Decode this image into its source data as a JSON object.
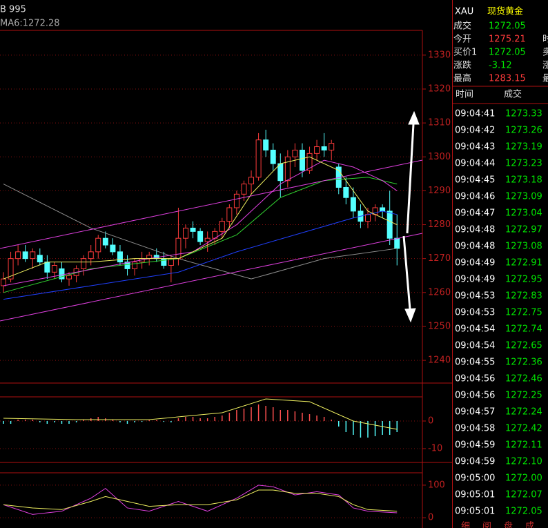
{
  "chart_data": [
    {
      "type": "candlestick",
      "title": "B 995",
      "annotation": "MA6:1272.28",
      "up_color": "#ff3b3b",
      "down_color": "#54ffff",
      "ylim": [
        1233.3,
        1337.3
      ],
      "yticks": [
        1240,
        1250,
        1260,
        1270,
        1280,
        1290,
        1300,
        1310,
        1320,
        1330
      ],
      "grid": true,
      "ohlc": [
        [
          1262,
          1266,
          1260,
          1264
        ],
        [
          1264,
          1272,
          1263,
          1270
        ],
        [
          1270,
          1274,
          1268,
          1272
        ],
        [
          1272,
          1274,
          1269,
          1270
        ],
        [
          1270,
          1273,
          1267,
          1272
        ],
        [
          1271,
          1273,
          1268,
          1269
        ],
        [
          1269,
          1271,
          1264,
          1266
        ],
        [
          1266,
          1269,
          1264,
          1268
        ],
        [
          1267,
          1269,
          1263,
          1264
        ],
        [
          1264,
          1266,
          1262,
          1265
        ],
        [
          1265,
          1268,
          1263,
          1267
        ],
        [
          1267,
          1271,
          1265,
          1270
        ],
        [
          1270,
          1274,
          1268,
          1272
        ],
        [
          1272,
          1277,
          1270,
          1276
        ],
        [
          1276,
          1278,
          1273,
          1274
        ],
        [
          1274,
          1276,
          1271,
          1272
        ],
        [
          1272,
          1274,
          1268,
          1269
        ],
        [
          1269,
          1271,
          1265,
          1267
        ],
        [
          1267,
          1270,
          1265,
          1269
        ],
        [
          1269,
          1272,
          1267,
          1270
        ],
        [
          1270,
          1272,
          1268,
          1271
        ],
        [
          1271,
          1273,
          1269,
          1270
        ],
        [
          1270,
          1272,
          1267,
          1268
        ],
        [
          1268,
          1271,
          1263,
          1270
        ],
        [
          1270,
          1285,
          1268,
          1276
        ],
        [
          1276,
          1280,
          1273,
          1279
        ],
        [
          1279,
          1281,
          1276,
          1278
        ],
        [
          1278,
          1279,
          1274,
          1275
        ],
        [
          1275,
          1278,
          1272,
          1276
        ],
        [
          1276,
          1279,
          1274,
          1278
        ],
        [
          1278,
          1282,
          1276,
          1281
        ],
        [
          1281,
          1286,
          1279,
          1285
        ],
        [
          1285,
          1290,
          1283,
          1289
        ],
        [
          1289,
          1293,
          1287,
          1292
        ],
        [
          1292,
          1296,
          1289,
          1294
        ],
        [
          1294,
          1307,
          1293,
          1305
        ],
        [
          1305,
          1308,
          1300,
          1302
        ],
        [
          1302,
          1304,
          1296,
          1298
        ],
        [
          1298,
          1301,
          1288,
          1293
        ],
        [
          1293,
          1302,
          1291,
          1300
        ],
        [
          1300,
          1304,
          1297,
          1302
        ],
        [
          1302,
          1304,
          1294,
          1296
        ],
        [
          1296,
          1303,
          1295,
          1301
        ],
        [
          1301,
          1305,
          1299,
          1303
        ],
        [
          1303,
          1307,
          1300,
          1302
        ],
        [
          1302,
          1305,
          1299,
          1304
        ],
        [
          1297,
          1298,
          1289,
          1291
        ],
        [
          1291,
          1294,
          1286,
          1288
        ],
        [
          1288,
          1291,
          1282,
          1284
        ],
        [
          1284,
          1286,
          1279,
          1281
        ],
        [
          1281,
          1285,
          1279,
          1283
        ],
        [
          1283,
          1286,
          1281,
          1285
        ],
        [
          1285,
          1286,
          1282,
          1284
        ],
        [
          1284,
          1290,
          1274,
          1276
        ],
        [
          1276,
          1283,
          1268,
          1273
        ]
      ],
      "lines": [
        {
          "color": "#909090",
          "x": [
            0,
            12,
            24,
            34,
            44,
            54
          ],
          "values": [
            1292,
            1279,
            1270,
            1264,
            1270,
            1273
          ]
        },
        {
          "color": "#2040ff",
          "x": [
            0,
            12,
            24,
            32,
            40,
            48,
            52,
            54
          ],
          "values": [
            1258,
            1262,
            1266,
            1272,
            1277,
            1282,
            1284,
            1283
          ]
        },
        {
          "color": "#30d030",
          "x": [
            0,
            12,
            24,
            32,
            38,
            44,
            50,
            54
          ],
          "values": [
            1260,
            1267,
            1270,
            1277,
            1288,
            1293,
            1294,
            1292
          ]
        },
        {
          "color": "#e040e0",
          "x": [
            0,
            10,
            20,
            26,
            32,
            38,
            44,
            48,
            52,
            54
          ],
          "values": [
            1262,
            1266,
            1270,
            1272,
            1280,
            1292,
            1299,
            1297,
            1293,
            1290
          ]
        },
        {
          "color": "#f0f060",
          "x": [
            0,
            6,
            12,
            18,
            24,
            30,
            34,
            38,
            42,
            46,
            50,
            54
          ],
          "values": [
            1264,
            1269,
            1269,
            1270,
            1270,
            1276,
            1289,
            1298,
            1300,
            1296,
            1284,
            1280
          ]
        }
      ]
    },
    {
      "type": "bar",
      "up_color": "#ff5050",
      "down_color": "#54ffff",
      "ylim": [
        -15,
        8.75
      ],
      "yticks": [
        0,
        -10
      ],
      "values": [
        -1,
        -1,
        0.5,
        0.5,
        0.5,
        -0.5,
        -1,
        -0.5,
        -1,
        -1,
        -0.5,
        0.5,
        1,
        1.5,
        1,
        0.5,
        -0.5,
        -1,
        -0.5,
        -0.3,
        0.3,
        0.3,
        -0.3,
        -0.5,
        1,
        1.5,
        1.5,
        1,
        1,
        1.5,
        2,
        3,
        4,
        4.5,
        5,
        6,
        5.5,
        5,
        4,
        4,
        3.5,
        3,
        2.5,
        2,
        1.5,
        0.5,
        -2,
        -4,
        -5,
        -6,
        -6,
        -5.5,
        -5,
        -5,
        -4
      ],
      "lines": [
        {
          "color": "#f0f060",
          "x": [
            0,
            10,
            20,
            30,
            36,
            42,
            48,
            54
          ],
          "values": [
            1,
            0.5,
            0.5,
            3,
            8,
            7,
            0,
            -3
          ]
        }
      ]
    },
    {
      "type": "line",
      "ylim": [
        -21,
        138
      ],
      "yticks": [
        0,
        100
      ],
      "lines": [
        {
          "color": "#e040e0",
          "x": [
            0,
            4,
            8,
            12,
            14,
            17,
            20,
            24,
            28,
            32,
            35,
            37,
            40,
            43,
            46,
            48,
            50,
            54
          ],
          "values": [
            40,
            10,
            20,
            60,
            90,
            30,
            20,
            50,
            20,
            60,
            100,
            95,
            70,
            80,
            70,
            30,
            20,
            15
          ]
        },
        {
          "color": "#f0f060",
          "x": [
            0,
            4,
            8,
            12,
            14,
            17,
            20,
            24,
            28,
            32,
            35,
            37,
            40,
            43,
            46,
            48,
            50,
            54
          ],
          "values": [
            40,
            30,
            25,
            50,
            65,
            50,
            35,
            40,
            40,
            55,
            85,
            85,
            75,
            75,
            65,
            40,
            25,
            20
          ]
        }
      ]
    }
  ],
  "header": {
    "symbol": "XAU",
    "name": "现货黄金"
  },
  "quote": [
    {
      "label": "成交",
      "value": "1272.05",
      "color": "#00e600"
    },
    {
      "label": "今开",
      "value": "1275.21",
      "color": "#ff3b3b",
      "cut": "时"
    },
    {
      "label": "买价1",
      "value": "1272.05",
      "color": "#00e600",
      "cut": "卖"
    },
    {
      "label": "涨跌",
      "value": "-3.12",
      "color": "#00e600",
      "cut": "涨"
    },
    {
      "label": "最高",
      "value": "1283.15",
      "color": "#ff3b3b",
      "cut": "最"
    }
  ],
  "trades": {
    "columns": [
      "时间",
      "成交"
    ],
    "rows": [
      [
        "09:04:41",
        "1273.33"
      ],
      [
        "09:04:42",
        "1273.26"
      ],
      [
        "09:04:43",
        "1273.19"
      ],
      [
        "09:04:44",
        "1273.23"
      ],
      [
        "09:04:45",
        "1273.18"
      ],
      [
        "09:04:46",
        "1273.09"
      ],
      [
        "09:04:47",
        "1273.04"
      ],
      [
        "09:04:48",
        "1272.97"
      ],
      [
        "09:04:48",
        "1273.08"
      ],
      [
        "09:04:49",
        "1272.91"
      ],
      [
        "09:04:49",
        "1272.95"
      ],
      [
        "09:04:53",
        "1272.83"
      ],
      [
        "09:04:53",
        "1272.75"
      ],
      [
        "09:04:54",
        "1272.74"
      ],
      [
        "09:04:54",
        "1272.65"
      ],
      [
        "09:04:55",
        "1272.36"
      ],
      [
        "09:04:56",
        "1272.46"
      ],
      [
        "09:04:56",
        "1272.25"
      ],
      [
        "09:04:57",
        "1272.24"
      ],
      [
        "09:04:58",
        "1272.42"
      ],
      [
        "09:04:59",
        "1272.11"
      ],
      [
        "09:04:59",
        "1272.10"
      ],
      [
        "09:05:00",
        "1272.00"
      ],
      [
        "09:05:01",
        "1272.07"
      ],
      [
        "09:05:01",
        "1272.05"
      ]
    ]
  },
  "tabs": [
    "细",
    "阅",
    "盘",
    "成"
  ]
}
